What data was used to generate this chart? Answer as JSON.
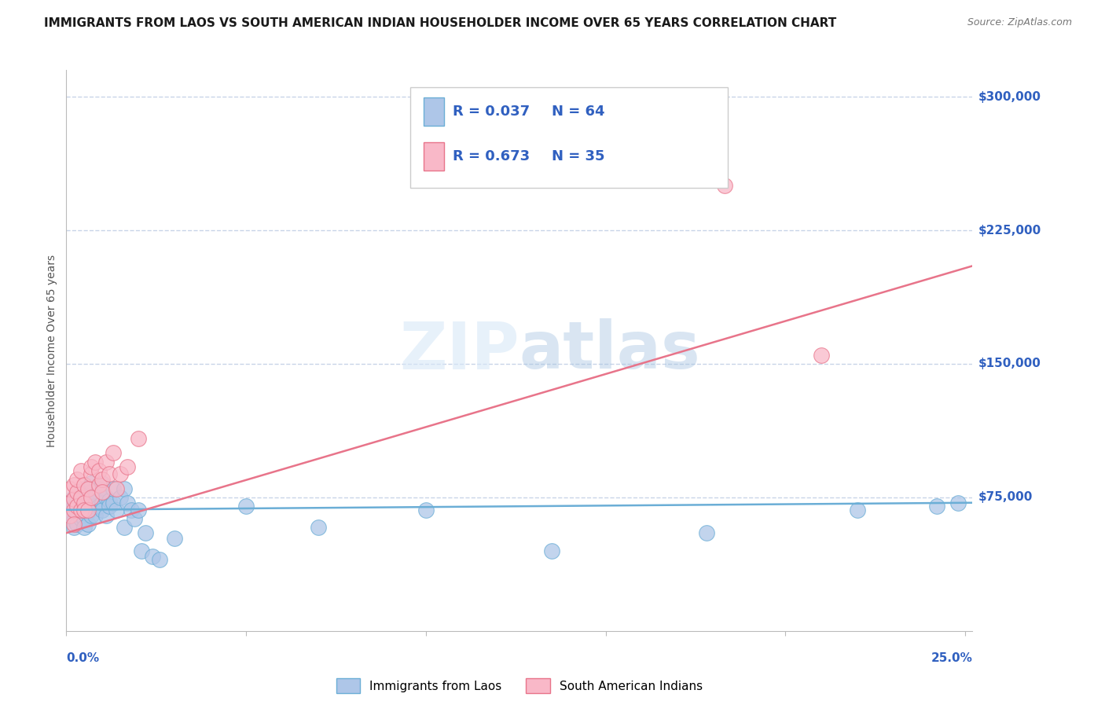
{
  "title": "IMMIGRANTS FROM LAOS VS SOUTH AMERICAN INDIAN HOUSEHOLDER INCOME OVER 65 YEARS CORRELATION CHART",
  "source": "Source: ZipAtlas.com",
  "ylabel": "Householder Income Over 65 years",
  "watermark": "ZIPatlas",
  "legend_blue_r": "0.037",
  "legend_blue_n": "64",
  "legend_pink_r": "0.673",
  "legend_pink_n": "35",
  "legend_label_blue": "Immigrants from Laos",
  "legend_label_pink": "South American Indians",
  "blue_color": "#aec6e8",
  "blue_edge_color": "#6baed6",
  "pink_color": "#f9b8c8",
  "pink_edge_color": "#e8748a",
  "axis_label_color": "#3060c0",
  "text_r_n_color": "#3060c0",
  "ytick_labels": [
    "$75,000",
    "$150,000",
    "$225,000",
    "$300,000"
  ],
  "ytick_values": [
    75000,
    150000,
    225000,
    300000
  ],
  "ymax": 315000,
  "ymin": 0,
  "xmax": 0.252,
  "xmin": 0.0,
  "blue_scatter_x": [
    0.001,
    0.001,
    0.001,
    0.002,
    0.002,
    0.002,
    0.002,
    0.003,
    0.003,
    0.003,
    0.003,
    0.004,
    0.004,
    0.004,
    0.004,
    0.004,
    0.005,
    0.005,
    0.005,
    0.005,
    0.005,
    0.006,
    0.006,
    0.006,
    0.006,
    0.007,
    0.007,
    0.007,
    0.007,
    0.008,
    0.008,
    0.008,
    0.009,
    0.009,
    0.01,
    0.01,
    0.01,
    0.011,
    0.011,
    0.012,
    0.012,
    0.013,
    0.013,
    0.014,
    0.015,
    0.016,
    0.016,
    0.017,
    0.018,
    0.019,
    0.02,
    0.021,
    0.022,
    0.024,
    0.026,
    0.03,
    0.05,
    0.07,
    0.1,
    0.135,
    0.178,
    0.22,
    0.242,
    0.248
  ],
  "blue_scatter_y": [
    68000,
    72000,
    65000,
    70000,
    62000,
    58000,
    75000,
    66000,
    70000,
    73000,
    60000,
    65000,
    70000,
    78000,
    63000,
    72000,
    68000,
    73000,
    63000,
    58000,
    80000,
    67000,
    72000,
    76000,
    60000,
    70000,
    65000,
    78000,
    83000,
    70000,
    75000,
    65000,
    70000,
    80000,
    72000,
    68000,
    83000,
    75000,
    65000,
    73000,
    70000,
    72000,
    80000,
    68000,
    75000,
    80000,
    58000,
    72000,
    68000,
    63000,
    68000,
    45000,
    55000,
    42000,
    40000,
    52000,
    70000,
    58000,
    68000,
    45000,
    55000,
    68000,
    70000,
    72000
  ],
  "pink_scatter_x": [
    0.001,
    0.001,
    0.001,
    0.002,
    0.002,
    0.002,
    0.002,
    0.003,
    0.003,
    0.003,
    0.004,
    0.004,
    0.004,
    0.005,
    0.005,
    0.005,
    0.006,
    0.006,
    0.007,
    0.007,
    0.007,
    0.008,
    0.009,
    0.009,
    0.01,
    0.01,
    0.011,
    0.012,
    0.013,
    0.014,
    0.015,
    0.017,
    0.02,
    0.183,
    0.21
  ],
  "pink_scatter_y": [
    65000,
    72000,
    80000,
    68000,
    74000,
    82000,
    60000,
    78000,
    70000,
    85000,
    68000,
    75000,
    90000,
    72000,
    82000,
    68000,
    80000,
    68000,
    88000,
    92000,
    75000,
    95000,
    82000,
    90000,
    85000,
    78000,
    95000,
    88000,
    100000,
    80000,
    88000,
    92000,
    108000,
    250000,
    155000
  ],
  "blue_trend_x": [
    0.0,
    0.252
  ],
  "blue_trend_y": [
    68000,
    72000
  ],
  "pink_trend_x": [
    0.0,
    0.252
  ],
  "pink_trend_y": [
    55000,
    205000
  ],
  "grid_color": "#c8d4e8",
  "title_fontsize": 11,
  "source_fontsize": 9,
  "tick_label_fontsize": 11
}
